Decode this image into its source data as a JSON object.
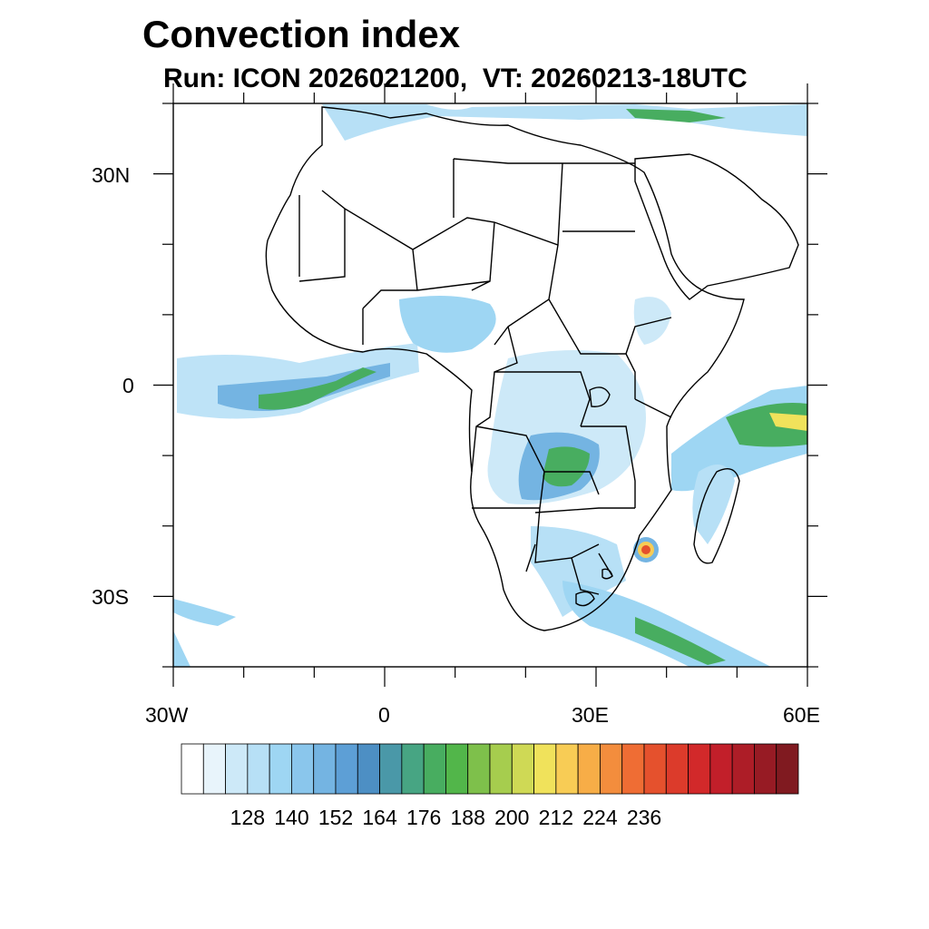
{
  "title": "Convection index",
  "subtitle": "Run: ICON 2026021200,  VT: 20260213-18UTC",
  "axes": {
    "y_labels": [
      "30N",
      "0",
      "30S"
    ],
    "x_labels": [
      "30W",
      "0",
      "30E",
      "60E"
    ],
    "lon_range": [
      -30,
      60
    ],
    "lat_range": [
      -40,
      40
    ]
  },
  "colorbar": {
    "labels": [
      "128",
      "140",
      "152",
      "164",
      "176",
      "188",
      "200",
      "212",
      "224",
      "236"
    ],
    "colors": [
      "#ffffff",
      "#e8f4fb",
      "#cde9f8",
      "#b7e0f6",
      "#9ed6f3",
      "#8ac6ec",
      "#74b4e2",
      "#5d9fd6",
      "#4d8fc4",
      "#4a98a8",
      "#47a583",
      "#48ad60",
      "#52b64a",
      "#7ec04b",
      "#a6cd4e",
      "#cfd955",
      "#f0e25b",
      "#f8cc55",
      "#f7ad47",
      "#f38d3d",
      "#ef6d34",
      "#e5512d",
      "#dc3b2b",
      "#d2292a",
      "#c21f2a",
      "#ad1d27",
      "#971b24",
      "#801a20"
    ]
  },
  "colors": {
    "frame": "#000000",
    "borders": "#000000"
  }
}
